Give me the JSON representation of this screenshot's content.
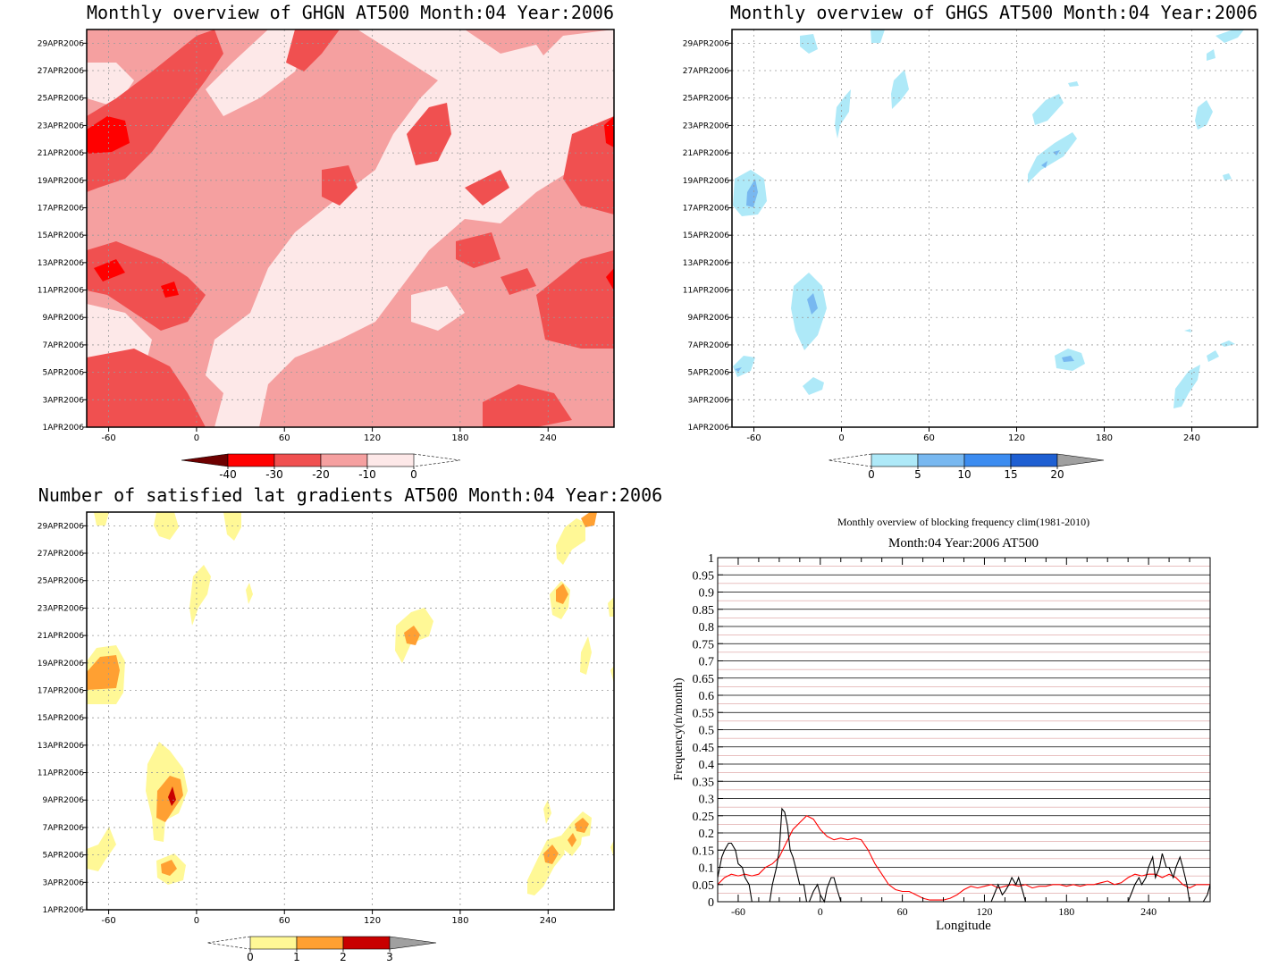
{
  "chart_data": [
    {
      "type": "heatmap",
      "id": "ghgn",
      "title": "Monthly overview of GHGN AT500 Month:04 Year:2006",
      "xticks": [
        "-60",
        "0",
        "60",
        "120",
        "180",
        "240"
      ],
      "yticks": [
        "1APR2006",
        "3APR2006",
        "5APR2006",
        "7APR2006",
        "9APR2006",
        "11APR2006",
        "13APR2006",
        "15APR2006",
        "17APR2006",
        "19APR2006",
        "21APR2006",
        "23APR2006",
        "25APR2006",
        "27APR2006",
        "29APR2006"
      ],
      "colorbar": {
        "levels": [
          "-40",
          "-30",
          "-20",
          "-10",
          "0"
        ],
        "colors": [
          "#6e0000",
          "#ff0000",
          "#f05050",
          "#f5a0a0",
          "#fde8e8"
        ]
      }
    },
    {
      "type": "heatmap",
      "id": "ghgs",
      "title": "Monthly overview of GHGS AT500 Month:04 Year:2006",
      "xticks": [
        "-60",
        "0",
        "60",
        "120",
        "180",
        "240"
      ],
      "yticks": [
        "1APR2006",
        "3APR2006",
        "5APR2006",
        "7APR2006",
        "9APR2006",
        "11APR2006",
        "13APR2006",
        "15APR2006",
        "17APR2006",
        "19APR2006",
        "21APR2006",
        "23APR2006",
        "25APR2006",
        "27APR2006",
        "29APR2006"
      ],
      "colorbar": {
        "levels": [
          "0",
          "5",
          "10",
          "15",
          "20"
        ],
        "colors": [
          "#aee9f8",
          "#78b8f0",
          "#3c8cf0",
          "#1e5fd2",
          "#a0a0a0"
        ]
      }
    },
    {
      "type": "heatmap",
      "id": "latgrad",
      "title": "Number of satisfied lat gradients AT500 Month:04 Year:2006",
      "xticks": [
        "-60",
        "0",
        "60",
        "120",
        "180",
        "240"
      ],
      "yticks": [
        "1APR2006",
        "3APR2006",
        "5APR2006",
        "7APR2006",
        "9APR2006",
        "11APR2006",
        "13APR2006",
        "15APR2006",
        "17APR2006",
        "19APR2006",
        "21APR2006",
        "23APR2006",
        "25APR2006",
        "27APR2006",
        "29APR2006"
      ],
      "colorbar": {
        "levels": [
          "0",
          "1",
          "2",
          "3"
        ],
        "colors": [
          "#fff896",
          "#ffa032",
          "#c80000",
          "#a0a0a0"
        ]
      }
    },
    {
      "type": "line",
      "id": "blocking",
      "title": "Monthly overview of blocking frequency clim(1981-2010)",
      "subtitle": "Month:04 Year:2006  AT500",
      "xlabel": "Longitude",
      "ylabel": "Frequency(n/month)",
      "xlim": [
        -75,
        285
      ],
      "ylim": [
        0,
        1
      ],
      "xticks": [
        "-60",
        "0",
        "60",
        "120",
        "180",
        "240"
      ],
      "yticks": [
        "0",
        "0.05",
        "0.1",
        "0.15",
        "0.2",
        "0.25",
        "0.3",
        "0.35",
        "0.4",
        "0.45",
        "0.5",
        "0.55",
        "0.6",
        "0.65",
        "0.7",
        "0.75",
        "0.8",
        "0.85",
        "0.9",
        "0.95",
        "1"
      ],
      "series": [
        {
          "color": "#ff0000",
          "x": [
            -75,
            -70,
            -65,
            -60,
            -55,
            -50,
            -45,
            -40,
            -35,
            -30,
            -25,
            -20,
            -15,
            -10,
            -5,
            0,
            5,
            10,
            15,
            20,
            25,
            30,
            35,
            40,
            45,
            50,
            55,
            60,
            65,
            70,
            75,
            80,
            85,
            90,
            95,
            100,
            105,
            110,
            115,
            120,
            125,
            130,
            135,
            140,
            145,
            150,
            155,
            160,
            165,
            170,
            175,
            180,
            185,
            190,
            195,
            200,
            205,
            210,
            215,
            220,
            225,
            230,
            235,
            240,
            245,
            250,
            255,
            260,
            265,
            270,
            275,
            280,
            285
          ],
          "values": [
            0.05,
            0.07,
            0.08,
            0.075,
            0.08,
            0.075,
            0.08,
            0.1,
            0.11,
            0.13,
            0.17,
            0.21,
            0.23,
            0.25,
            0.24,
            0.21,
            0.19,
            0.18,
            0.185,
            0.18,
            0.185,
            0.18,
            0.15,
            0.11,
            0.08,
            0.05,
            0.035,
            0.03,
            0.03,
            0.02,
            0.01,
            0.005,
            0.005,
            0.005,
            0.01,
            0.02,
            0.035,
            0.045,
            0.04,
            0.045,
            0.05,
            0.04,
            0.045,
            0.05,
            0.045,
            0.05,
            0.04,
            0.045,
            0.045,
            0.05,
            0.05,
            0.045,
            0.05,
            0.045,
            0.05,
            0.05,
            0.055,
            0.06,
            0.05,
            0.055,
            0.07,
            0.08,
            0.075,
            0.08,
            0.08,
            0.07,
            0.08,
            0.07,
            0.05,
            0.04,
            0.05,
            0.05,
            0.05
          ]
        },
        {
          "color": "#000000",
          "x": [
            -75,
            -72,
            -70,
            -67,
            -65,
            -62,
            -60,
            -57,
            -55,
            -52,
            -50,
            -47,
            -45,
            -42,
            -40,
            -37,
            -35,
            -32,
            -30,
            -28,
            -26,
            -24,
            -22,
            -20,
            -18,
            -15,
            -12,
            -10,
            -8,
            -5,
            -2,
            0,
            3,
            5,
            8,
            10,
            12,
            15,
            18,
            20,
            25,
            30,
            35,
            40,
            45,
            50,
            55,
            60,
            65,
            70,
            75,
            80,
            85,
            90,
            95,
            100,
            105,
            110,
            115,
            120,
            125,
            128,
            130,
            133,
            135,
            138,
            140,
            143,
            145,
            148,
            150,
            155,
            160,
            165,
            170,
            175,
            180,
            185,
            190,
            195,
            200,
            205,
            210,
            215,
            220,
            225,
            228,
            230,
            233,
            235,
            238,
            240,
            243,
            245,
            248,
            250,
            253,
            255,
            258,
            260,
            263,
            265,
            268,
            270,
            275,
            280,
            283,
            285
          ],
          "values": [
            0.07,
            0.13,
            0.15,
            0.17,
            0.17,
            0.15,
            0.11,
            0.1,
            0.07,
            0.05,
            0.0,
            0.0,
            0.0,
            0.0,
            0.0,
            0.0,
            0.05,
            0.1,
            0.15,
            0.27,
            0.26,
            0.22,
            0.15,
            0.13,
            0.1,
            0.05,
            0.05,
            0.0,
            0.0,
            0.03,
            0.05,
            0.02,
            0.0,
            0.04,
            0.07,
            0.07,
            0.04,
            0.0,
            0.0,
            0.0,
            0.0,
            0.0,
            0.0,
            0.0,
            0.0,
            0.0,
            0.0,
            0.0,
            0.0,
            0.0,
            0.0,
            0.0,
            0.0,
            0.0,
            0.0,
            0.0,
            0.0,
            0.0,
            0.0,
            0.0,
            0.0,
            0.03,
            0.05,
            0.02,
            0.03,
            0.05,
            0.07,
            0.05,
            0.07,
            0.03,
            0.0,
            0.0,
            0.0,
            0.0,
            0.0,
            0.0,
            0.0,
            0.0,
            0.0,
            0.0,
            0.0,
            0.0,
            0.0,
            0.0,
            0.0,
            0.0,
            0.03,
            0.05,
            0.07,
            0.05,
            0.07,
            0.1,
            0.13,
            0.07,
            0.1,
            0.14,
            0.1,
            0.1,
            0.07,
            0.1,
            0.13,
            0.1,
            0.05,
            0.0,
            0.0,
            0.0,
            0.02,
            0.05
          ]
        }
      ]
    }
  ]
}
